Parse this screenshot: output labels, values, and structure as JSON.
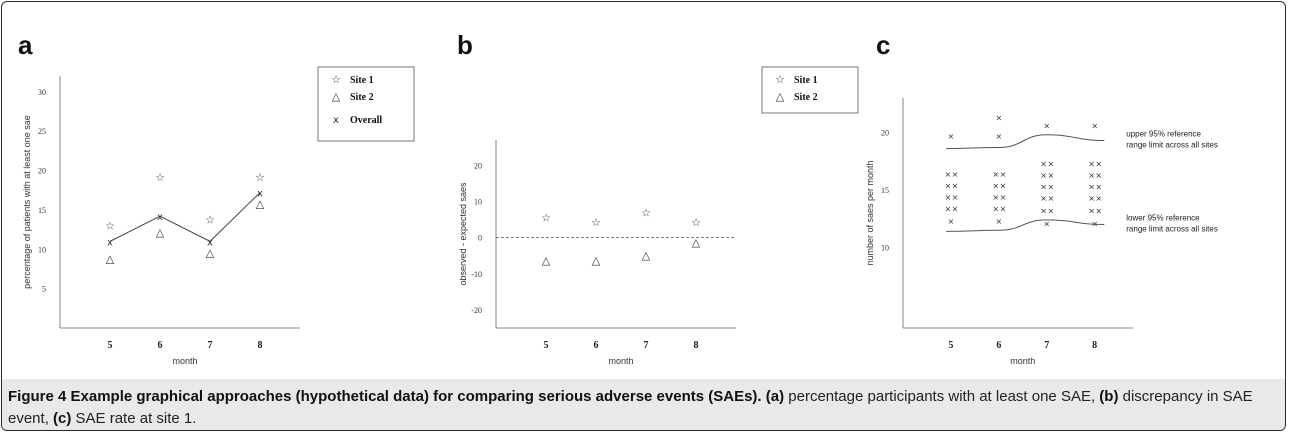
{
  "caption": {
    "label": "Figure 4",
    "title": "Example graphical approaches (hypothetical data) for comparing serious adverse events (SAEs).",
    "part_a_tag": "(a)",
    "part_a_text": " percentage participants with at least one SAE, ",
    "part_b_tag": "(b)",
    "part_b_text": " discrepancy in SAE event, ",
    "part_c_tag": "(c)",
    "part_c_text": " SAE rate at site 1."
  },
  "chart_data": [
    {
      "panel": "a",
      "type": "line",
      "title": "",
      "xlabel": "month",
      "ylabel": "percentage of patients with at least one sae",
      "x": [
        5,
        6,
        7,
        8
      ],
      "xlim": [
        4,
        8.8
      ],
      "ylim": [
        0,
        32
      ],
      "yticks": [
        5,
        10,
        15,
        20,
        25,
        30
      ],
      "series": [
        {
          "name": "Site 1",
          "marker": "☆",
          "values": [
            13,
            19.2,
            13.8,
            19.2
          ]
        },
        {
          "name": "Site 2",
          "marker": "△",
          "values": [
            8.8,
            12.2,
            9.6,
            15.8
          ]
        },
        {
          "name": "Overall",
          "marker": "x",
          "line": true,
          "values": [
            11,
            14.2,
            11,
            17.2
          ]
        }
      ],
      "legend": "top-right"
    },
    {
      "panel": "b",
      "type": "scatter",
      "title": "",
      "xlabel": "month",
      "ylabel": "observed - expected saes",
      "x": [
        5,
        6,
        7,
        8
      ],
      "xlim": [
        4,
        8.8
      ],
      "ylim": [
        -25,
        27
      ],
      "yticks": [
        -20,
        -10,
        0,
        10,
        20
      ],
      "reference_line": 0,
      "series": [
        {
          "name": "Site 1",
          "marker": "☆",
          "values": [
            5.6,
            4.3,
            6.9,
            4.3
          ]
        },
        {
          "name": "Site 2",
          "marker": "△",
          "values": [
            -6.2,
            -6.2,
            -4.8,
            -1.2
          ]
        }
      ],
      "legend": "top-right"
    },
    {
      "panel": "c",
      "type": "scatter",
      "title": "",
      "xlabel": "month",
      "ylabel": "number of saes per month",
      "x": [
        5,
        6,
        7,
        8
      ],
      "xlim": [
        4,
        8.8
      ],
      "ylim": [
        3,
        23
      ],
      "yticks": [
        10,
        15,
        20
      ],
      "points": {
        "5": [
          19.7,
          16.4,
          15.4,
          14.4,
          13.4,
          12.3
        ],
        "6": [
          21.3,
          19.7,
          16.4,
          15.4,
          14.4,
          13.4,
          12.3
        ],
        "7": [
          20.6,
          17.3,
          16.3,
          15.3,
          14.3,
          13.2,
          12.1
        ],
        "8": [
          20.6,
          17.3,
          16.3,
          15.3,
          14.3,
          13.2,
          12.1
        ]
      },
      "doubled_rows": [
        16.4,
        15.4,
        14.4,
        13.4,
        17.3,
        16.3,
        15.3,
        14.3,
        13.2
      ],
      "upper_limit": {
        "x": [
          4.9,
          6,
          7,
          8.2
        ],
        "y": [
          18.6,
          18.7,
          19.8,
          19.3
        ]
      },
      "lower_limit": {
        "x": [
          4.9,
          6,
          7,
          8.2
        ],
        "y": [
          11.4,
          11.5,
          12.4,
          12.0
        ]
      },
      "annotations": [
        {
          "line1": "upper 95% reference",
          "line2": "range limit across all sites"
        },
        {
          "line1": "lower 95% reference",
          "line2": "range limit across all sites"
        }
      ]
    }
  ]
}
